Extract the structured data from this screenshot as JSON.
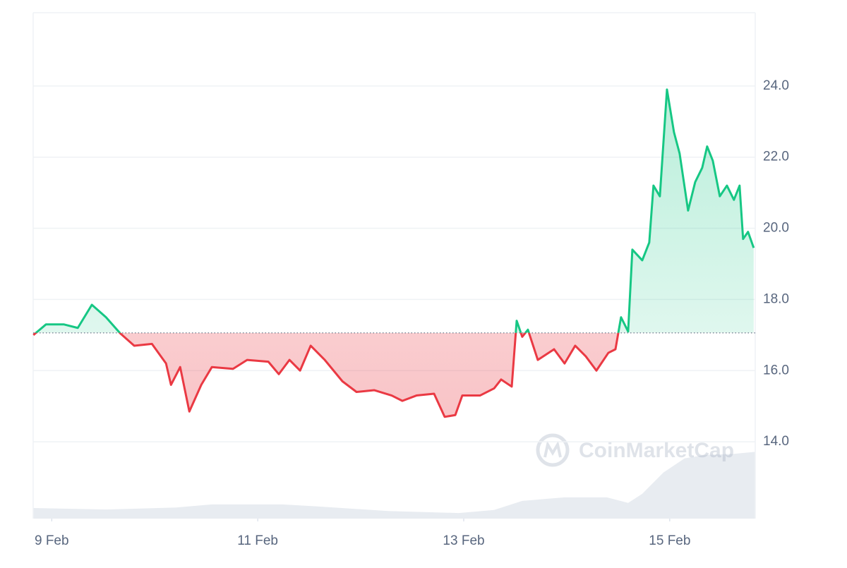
{
  "chart_data": {
    "type": "line",
    "watermark": "CoinMarketCap",
    "x": [
      8.822,
      8.945,
      9.116,
      9.253,
      9.39,
      9.527,
      9.664,
      9.801,
      9.973,
      10.11,
      10.158,
      10.247,
      10.336,
      10.452,
      10.555,
      10.76,
      10.897,
      11.103,
      11.205,
      11.308,
      11.411,
      11.514,
      11.651,
      11.822,
      11.959,
      12.13,
      12.301,
      12.404,
      12.541,
      12.712,
      12.815,
      12.918,
      12.986,
      13.158,
      13.295,
      13.363,
      13.466,
      13.514,
      13.568,
      13.623,
      13.719,
      13.877,
      13.979,
      14.082,
      14.185,
      14.288,
      14.404,
      14.473,
      14.527,
      14.596,
      14.637,
      14.733,
      14.801,
      14.842,
      14.904,
      14.973,
      15.041,
      15.096,
      15.178,
      15.247,
      15.315,
      15.363,
      15.418,
      15.486,
      15.555,
      15.623,
      15.678,
      15.712,
      15.76,
      15.815
    ],
    "series": [
      {
        "color": "#16c784",
        "color_below": "#ea3943",
        "values": [
          17.0,
          17.3,
          17.3,
          17.2,
          17.85,
          17.5,
          17.05,
          16.7,
          16.75,
          16.2,
          15.6,
          16.1,
          14.85,
          15.6,
          16.1,
          16.05,
          16.3,
          16.25,
          15.9,
          16.3,
          16.0,
          16.7,
          16.3,
          15.7,
          15.4,
          15.45,
          15.3,
          15.15,
          15.3,
          15.35,
          14.7,
          14.75,
          15.3,
          15.3,
          15.5,
          15.75,
          15.55,
          17.4,
          16.95,
          17.15,
          16.3,
          16.6,
          16.2,
          16.7,
          16.4,
          16.0,
          16.5,
          16.6,
          17.5,
          17.1,
          19.4,
          19.1,
          19.6,
          21.2,
          20.9,
          23.9,
          22.7,
          22.1,
          20.5,
          21.3,
          21.7,
          22.3,
          21.9,
          20.9,
          21.2,
          20.8,
          21.2,
          19.7,
          19.9,
          19.45
        ]
      }
    ],
    "baseline": 17.06,
    "volume": {
      "color": "#e8ecf1",
      "axis": "y2",
      "x": [
        8.822,
        9.527,
        10.212,
        10.555,
        11.24,
        11.582,
        12.267,
        12.952,
        13.295,
        13.568,
        13.979,
        14.39,
        14.596,
        14.733,
        14.938,
        15.144,
        15.349,
        15.623,
        15.829
      ],
      "values": [
        2.1,
        1.8,
        2.2,
        2.8,
        2.8,
        2.4,
        1.5,
        1.1,
        1.7,
        3.5,
        4.2,
        4.2,
        3.1,
        4.9,
        9.1,
        11.9,
        12.6,
        12.8,
        13.2
      ]
    },
    "xlim": [
      8.82,
      15.83
    ],
    "xticks": [
      {
        "value": 9,
        "label": "9 Feb"
      },
      {
        "value": 11,
        "label": "11 Feb"
      },
      {
        "value": 13,
        "label": "13 Feb"
      },
      {
        "value": 15,
        "label": "15 Feb"
      }
    ],
    "ylim": [
      11.84,
      26.06
    ],
    "yticks": [
      {
        "value": 14,
        "label": "14.0"
      },
      {
        "value": 16,
        "label": "16.0"
      },
      {
        "value": 18,
        "label": "18.0"
      },
      {
        "value": 20,
        "label": "20.0"
      },
      {
        "value": 22,
        "label": "22.0"
      },
      {
        "value": 24,
        "label": "24.0"
      }
    ],
    "y2lim": [
      0,
      100
    ],
    "grid": true
  }
}
